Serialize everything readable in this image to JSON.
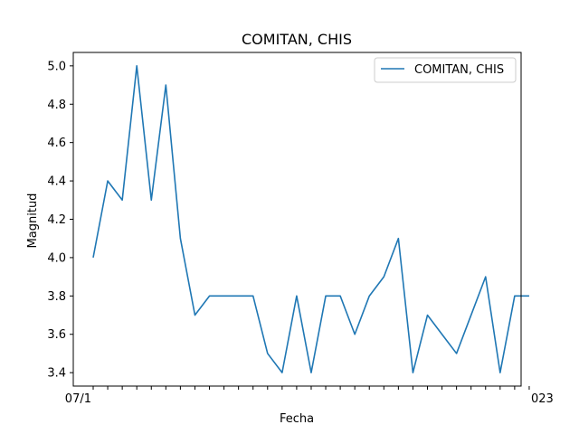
{
  "chart_data": {
    "type": "line",
    "title": "COMITAN, CHIS",
    "xlabel": "Fecha",
    "ylabel": "Magnitud",
    "ylim": [
      3.33,
      5.07
    ],
    "yticks": [
      3.4,
      3.6,
      3.8,
      4.0,
      4.2,
      4.4,
      4.6,
      4.8,
      5.0
    ],
    "ytick_labels": [
      "3.4",
      "3.6",
      "3.8",
      "4.0",
      "4.2",
      "4.4",
      "4.6",
      "4.8",
      "5.0"
    ],
    "x_tick_labels_note": "29 date tick labels overlap and are illegible; only the first fragment '07/1' and last fragment '023' are readable",
    "x_tick_first_fragment": "07/1",
    "x_tick_last_fragment": "023",
    "legend_position": "top-right",
    "grid": false,
    "series": [
      {
        "name": "COMITAN, CHIS",
        "color": "#1f77b4",
        "values": [
          4.0,
          4.4,
          4.3,
          5.0,
          4.3,
          4.9,
          4.1,
          3.7,
          3.8,
          3.8,
          3.8,
          3.8,
          3.5,
          3.4,
          3.8,
          3.4,
          3.8,
          3.8,
          3.6,
          3.8,
          3.9,
          4.1,
          3.4,
          3.7,
          3.6,
          3.5,
          3.7,
          3.9,
          3.4,
          3.8,
          3.8
        ]
      }
    ]
  }
}
